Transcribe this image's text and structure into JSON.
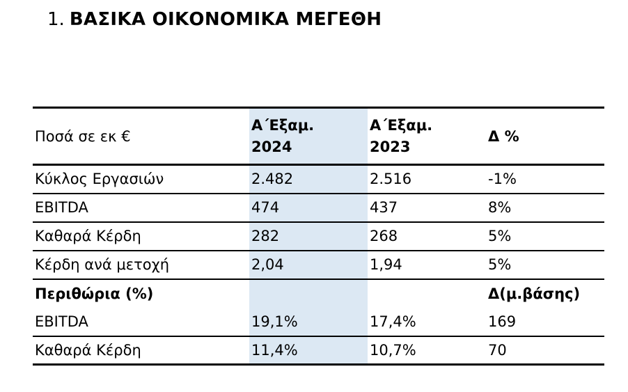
{
  "title": {
    "number": "1.",
    "text": "ΒΑΣΙΚΑ ΟΙΚΟΝΟΜΙΚΑ ΜΕΓΕΘΗ"
  },
  "table": {
    "header": {
      "amounts_label": "Ποσά σε εκ €",
      "col_2024_line1": "Α΄Εξαμ.",
      "col_2024_line2": "2024",
      "col_2023_line1": "Α΄Εξαμ.",
      "col_2023_line2": "2023",
      "delta_label": "Δ %"
    },
    "rows": [
      {
        "cells": [
          "Κύκλος Εργασιών",
          "2.482",
          "2.516",
          "-1%"
        ]
      },
      {
        "cells": [
          "EBITDA",
          "474",
          "437",
          "8%"
        ]
      },
      {
        "cells": [
          "Καθαρά Κέρδη",
          "282",
          "268",
          "5%"
        ]
      },
      {
        "cells": [
          "Κέρδη ανά μετοχή",
          "2,04",
          "1,94",
          "5%"
        ]
      },
      {
        "cells": [
          "Περιθώρια (%)",
          "",
          "",
          "Δ(μ.βάσης)"
        ]
      },
      {
        "cells": [
          "EBITDA",
          "19,1%",
          "17,4%",
          "169"
        ]
      },
      {
        "cells": [
          "Καθαρά Κέρδη",
          "11,4%",
          "10,7%",
          "70"
        ]
      }
    ]
  },
  "colors": {
    "highlight_column": "#dce8f3",
    "border": "#000000",
    "text": "#000000",
    "background": "#ffffff"
  }
}
